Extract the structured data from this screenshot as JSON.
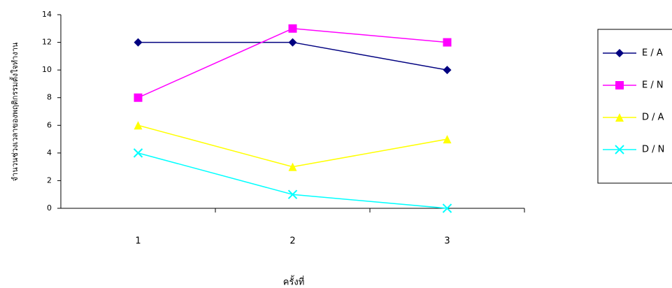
{
  "chart_data": {
    "type": "line",
    "x_label": "ครั้งที่",
    "y_label": "จำนวนช่วงเวลาของพฤติกรรมตั้งใจทำงาน",
    "categories": [
      "1",
      "2",
      "3"
    ],
    "series": [
      {
        "name": "E / A",
        "color": "#000080",
        "marker": "diamond",
        "values": [
          12,
          12,
          10
        ]
      },
      {
        "name": "E / N",
        "color": "#ff00ff",
        "marker": "square",
        "values": [
          8,
          13,
          12
        ]
      },
      {
        "name": "D / A",
        "color": "#ffff00",
        "marker": "triangle",
        "values": [
          6,
          3,
          5
        ]
      },
      {
        "name": "D / N",
        "color": "#00ffff",
        "marker": "x",
        "values": [
          4,
          1,
          0
        ]
      }
    ],
    "ylim": [
      0,
      14
    ],
    "yticks": [
      0,
      2,
      4,
      6,
      8,
      10,
      12,
      14
    ],
    "grid": false,
    "legend": "right"
  }
}
